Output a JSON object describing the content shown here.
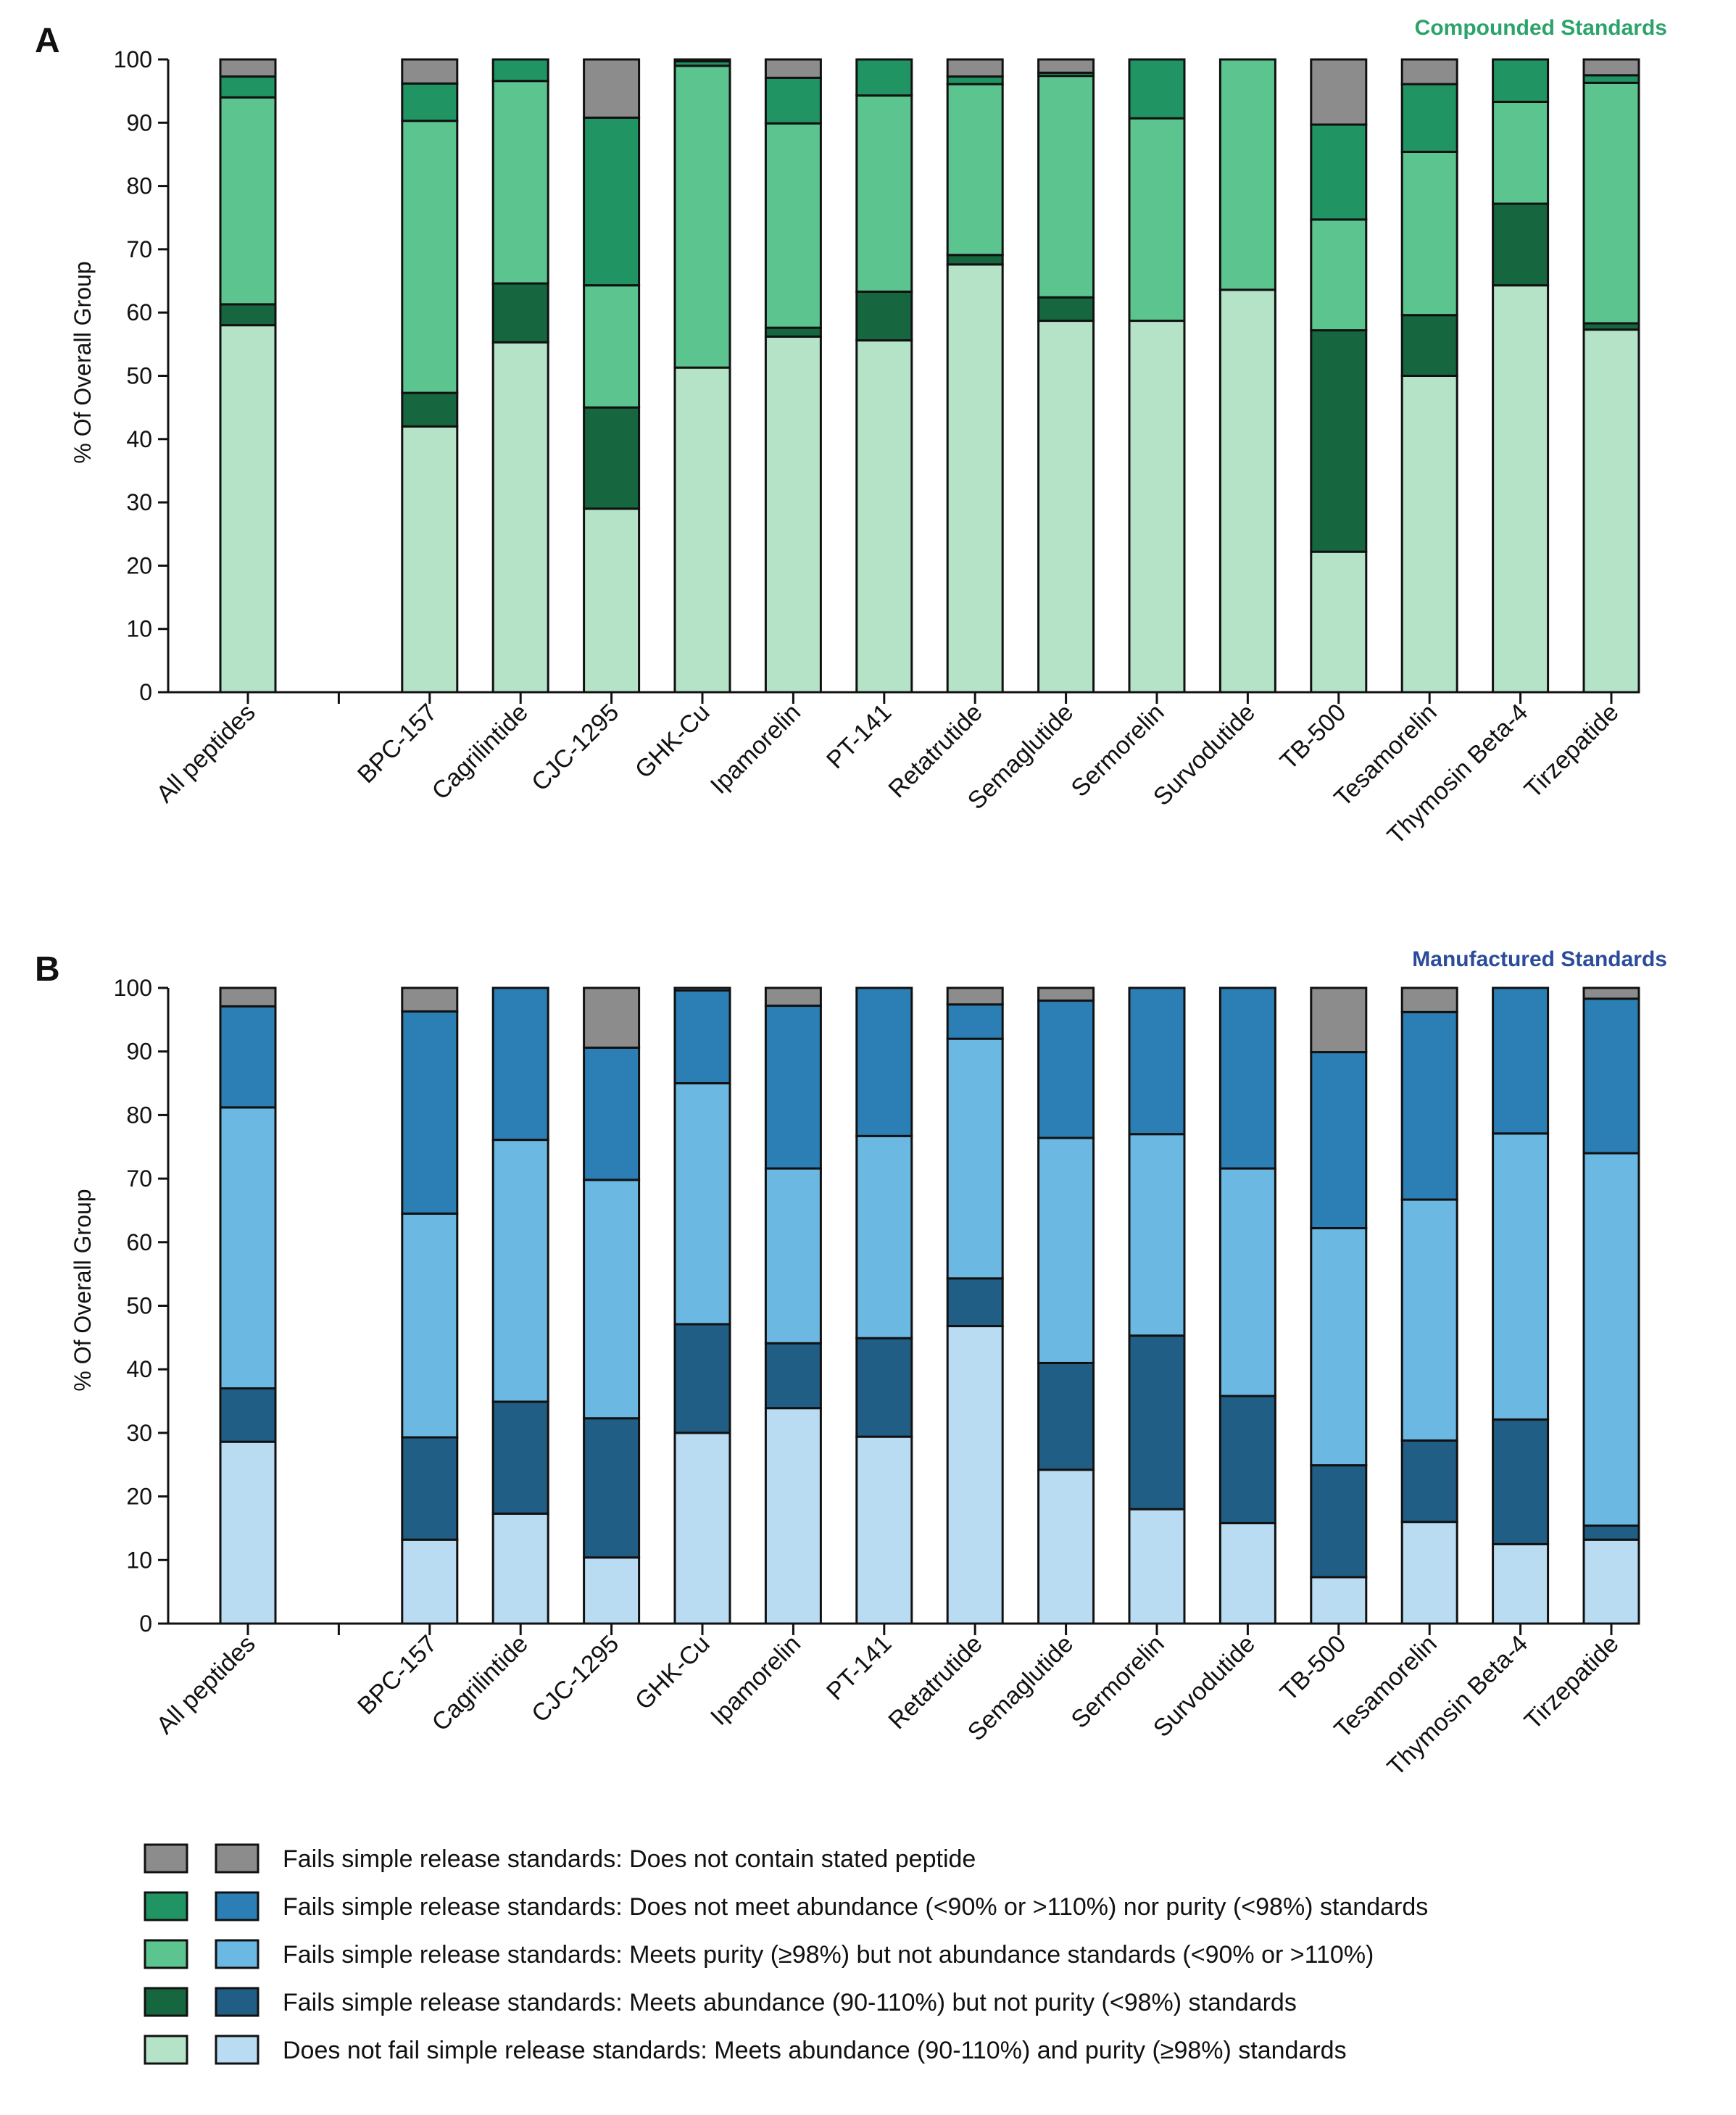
{
  "legend": {
    "items": [
      {
        "label": "Fails simple release standards: Does not contain stated peptide",
        "green": "#8C8C8C",
        "blue": "#8C8C8C"
      },
      {
        "label": "Fails simple release standards: Does not meet abundance (<90% or >110%) nor purity (<98%) standards",
        "green": "#209563",
        "blue": "#2B7FB4"
      },
      {
        "label": "Fails simple release standards: Meets purity (≥98%) but not abundance standards (<90% or >110%)",
        "green": "#5CC48F",
        "blue": "#6BB8E3"
      },
      {
        "label": "Fails simple release standards: Meets abundance (90-110%) but not purity (<98%) standards",
        "green": "#16663F",
        "blue": "#215E85"
      },
      {
        "label": "Does not fail simple release standards: Meets abundance (90-110%) and purity (≥98%) standards",
        "green": "#B5E3C8",
        "blue": "#BADCF2"
      }
    ]
  },
  "chart_data": [
    {
      "panel": "A",
      "type": "bar",
      "stacked": true,
      "title": "Compounded Standards",
      "title_color": "#2BA36A",
      "xlabel": "",
      "ylabel": "% Of Overall Group",
      "ylim": [
        0,
        100
      ],
      "yticks": [
        0,
        10,
        20,
        30,
        40,
        50,
        60,
        70,
        80,
        90,
        100
      ],
      "categories": [
        "All peptides",
        "",
        "BPC-157",
        "Cagrilintide",
        "CJC-1295",
        "GHK-Cu",
        "Ipamorelin",
        "PT-141",
        "Retatrutide",
        "Semaglutide",
        "Sermorelin",
        "Survodutide",
        "TB-500",
        "Tesamorelin",
        "Thymosin Beta-4",
        "Tirzepatide"
      ],
      "series": [
        {
          "name": "Does not fail simple release standards: Meets abundance (90-110%) and purity (≥98%) standards",
          "color": "#B5E3C8",
          "values": [
            58,
            null,
            42,
            55.3,
            29,
            51.3,
            56.2,
            55.6,
            67.6,
            58.7,
            58.7,
            63.6,
            22.2,
            50,
            64.3,
            57.3
          ]
        },
        {
          "name": "Fails simple release standards: Meets abundance (90-110%) but not purity (<98%) standards",
          "color": "#16663F",
          "values": [
            3.3,
            null,
            5.3,
            9.3,
            16,
            0,
            1.4,
            7.7,
            1.5,
            3.7,
            0,
            0,
            35,
            9.6,
            12.9,
            1
          ]
        },
        {
          "name": "Fails simple release standards: Meets purity (≥98%) but not abundance standards (<90% or >110%)",
          "color": "#5CC48F",
          "values": [
            32.7,
            null,
            43,
            32,
            19.3,
            47.7,
            32.3,
            31,
            27,
            35,
            32,
            36.4,
            17.5,
            25.8,
            16.1,
            38
          ]
        },
        {
          "name": "Fails simple release standards: Does not meet abundance (<90% or >110%) nor purity (<98%) standards",
          "color": "#209563",
          "values": [
            3.3,
            null,
            5.9,
            3.4,
            26.5,
            0.7,
            7.2,
            5.7,
            1.2,
            0.5,
            9.3,
            0,
            15,
            10.7,
            6.7,
            1.2
          ]
        },
        {
          "name": "Fails simple release standards: Does not contain stated peptide",
          "color": "#8C8C8C",
          "values": [
            2.7,
            null,
            3.8,
            0,
            9.2,
            0.3,
            2.9,
            0,
            2.7,
            2.1,
            0,
            0,
            10.3,
            3.9,
            0,
            2.5
          ]
        }
      ]
    },
    {
      "panel": "B",
      "type": "bar",
      "stacked": true,
      "title": "Manufactured Standards",
      "title_color": "#2B4C9A",
      "xlabel": "",
      "ylabel": "% Of Overall Group",
      "ylim": [
        0,
        100
      ],
      "yticks": [
        0,
        10,
        20,
        30,
        40,
        50,
        60,
        70,
        80,
        90,
        100
      ],
      "categories": [
        "All peptides",
        "",
        "BPC-157",
        "Cagrilintide",
        "CJC-1295",
        "GHK-Cu",
        "Ipamorelin",
        "PT-141",
        "Retatrutide",
        "Semaglutide",
        "Sermorelin",
        "Survodutide",
        "TB-500",
        "Tesamorelin",
        "Thymosin Beta-4",
        "Tirzepatide"
      ],
      "series": [
        {
          "name": "Does not fail simple release standards: Meets abundance (90-110%) and purity (≥98%) standards",
          "color": "#BADCF2",
          "values": [
            28.6,
            null,
            13.2,
            17.3,
            10.4,
            30,
            33.9,
            29.4,
            46.8,
            24.2,
            18,
            15.8,
            7.3,
            16,
            12.5,
            13.2
          ]
        },
        {
          "name": "Fails simple release standards: Meets abundance (90-110%) but not purity (<98%) standards",
          "color": "#215E85",
          "values": [
            8.4,
            null,
            16.1,
            17.6,
            21.9,
            17.1,
            10.2,
            15.5,
            7.5,
            16.8,
            27.3,
            20,
            17.6,
            12.8,
            19.6,
            2.2
          ]
        },
        {
          "name": "Fails simple release standards: Meets purity (≥98%) but not abundance standards (<90% or >110%)",
          "color": "#6BB8E3",
          "values": [
            44.2,
            null,
            35.2,
            41.2,
            37.5,
            37.9,
            27.5,
            31.8,
            37.7,
            35.4,
            31.7,
            35.8,
            37.3,
            37.9,
            45,
            58.6
          ]
        },
        {
          "name": "Fails simple release standards: Does not meet abundance (<90% or >110%) nor purity (<98%) standards",
          "color": "#2B7FB4",
          "values": [
            15.9,
            null,
            31.8,
            23.9,
            20.8,
            14.6,
            25.6,
            23.3,
            5.4,
            21.6,
            23,
            28.4,
            27.7,
            29.5,
            22.9,
            24.3
          ]
        },
        {
          "name": "Fails simple release standards: Does not contain stated peptide",
          "color": "#8C8C8C",
          "values": [
            2.9,
            null,
            3.7,
            0,
            9.4,
            0.4,
            2.8,
            0,
            2.6,
            2,
            0,
            0,
            10.1,
            3.8,
            0,
            1.7
          ]
        }
      ]
    }
  ]
}
